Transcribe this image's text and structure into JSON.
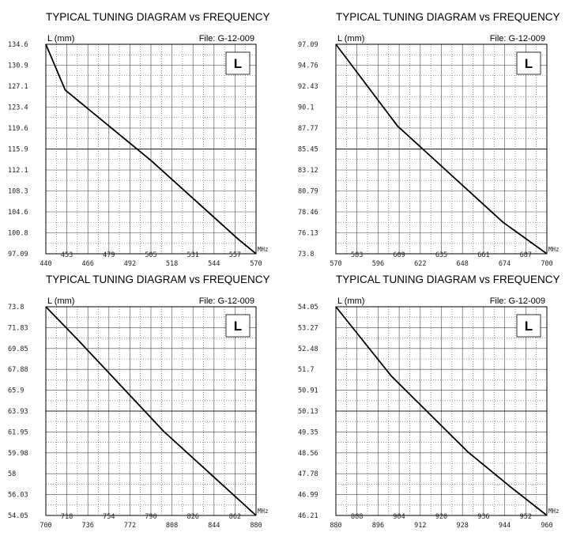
{
  "chart_data": [
    {
      "type": "line",
      "title": "TYPICAL TUNING DIAGRAM vs FREQUENCY",
      "ylabel": "L (mm)",
      "file_label": "File:  G-12-009",
      "badge": "L",
      "x_unit": "MHz",
      "xlim": [
        440,
        570
      ],
      "ylim": [
        97.09,
        134.6
      ],
      "x_ticks": [
        "440",
        "453",
        "466",
        "479",
        "492",
        "505",
        "518",
        "531",
        "544",
        "557",
        "570"
      ],
      "y_ticks": [
        "134.6",
        "130.9",
        "127.1",
        "123.4",
        "119.6",
        "115.9",
        "112.1",
        "108.3",
        "104.6",
        "100.8",
        "97.09"
      ],
      "series": [
        {
          "x": [
            440,
            452,
            505,
            559,
            570
          ],
          "y": [
            134.6,
            126.4,
            113.8,
            99.7,
            97.09
          ]
        }
      ]
    },
    {
      "type": "line",
      "title": "TYPICAL TUNING DIAGRAM vs FREQUENCY",
      "ylabel": "L (mm)",
      "file_label": "File:  G-12-009",
      "badge": "L",
      "x_unit": "MHz",
      "xlim": [
        570,
        700
      ],
      "ylim": [
        73.8,
        97.09
      ],
      "x_ticks": [
        "570",
        "583",
        "596",
        "609",
        "622",
        "635",
        "648",
        "661",
        "674",
        "687",
        "700"
      ],
      "y_ticks": [
        "97.09",
        "94.76",
        "92.43",
        "90.1",
        "87.77",
        "85.45",
        "83.12",
        "80.79",
        "78.46",
        "76.13",
        "73.8"
      ],
      "series": [
        {
          "x": [
            570,
            608,
            673,
            700
          ],
          "y": [
            97.09,
            88.0,
            77.3,
            73.8
          ]
        }
      ]
    },
    {
      "type": "line",
      "title": "TYPICAL TUNING DIAGRAM vs FREQUENCY",
      "ylabel": "L (mm)",
      "file_label": "File:  G-12-009",
      "badge": "L",
      "x_unit": "MHz",
      "xlim": [
        700,
        880
      ],
      "ylim": [
        54.05,
        73.8
      ],
      "x_ticks": [
        "700",
        "718",
        "736",
        "754",
        "772",
        "790",
        "808",
        "826",
        "844",
        "862",
        "880"
      ],
      "y_ticks": [
        "73.8",
        "71.83",
        "69.85",
        "67.88",
        "65.9",
        "63.93",
        "61.95",
        "59.98",
        "58",
        "56.03",
        "54.05"
      ],
      "series": [
        {
          "x": [
            700,
            728,
            801,
            880
          ],
          "y": [
            73.8,
            70.6,
            62.0,
            54.05
          ]
        }
      ]
    },
    {
      "type": "line",
      "title": "TYPICAL TUNING DIAGRAM vs FREQUENCY",
      "ylabel": "L (mm)",
      "file_label": "File:  G-12-009",
      "badge": "L",
      "x_unit": "MHz",
      "xlim": [
        880,
        960
      ],
      "ylim": [
        46.21,
        54.05
      ],
      "x_ticks": [
        "880",
        "888",
        "896",
        "904",
        "912",
        "920",
        "928",
        "936",
        "944",
        "952",
        "960"
      ],
      "y_ticks": [
        "54.05",
        "53.27",
        "52.48",
        "51.7",
        "50.91",
        "50.13",
        "49.35",
        "48.56",
        "47.78",
        "46.99",
        "46.21"
      ],
      "series": [
        {
          "x": [
            880,
            901,
            930,
            946,
            960
          ],
          "y": [
            54.05,
            51.45,
            48.6,
            47.3,
            46.21
          ]
        }
      ]
    }
  ]
}
